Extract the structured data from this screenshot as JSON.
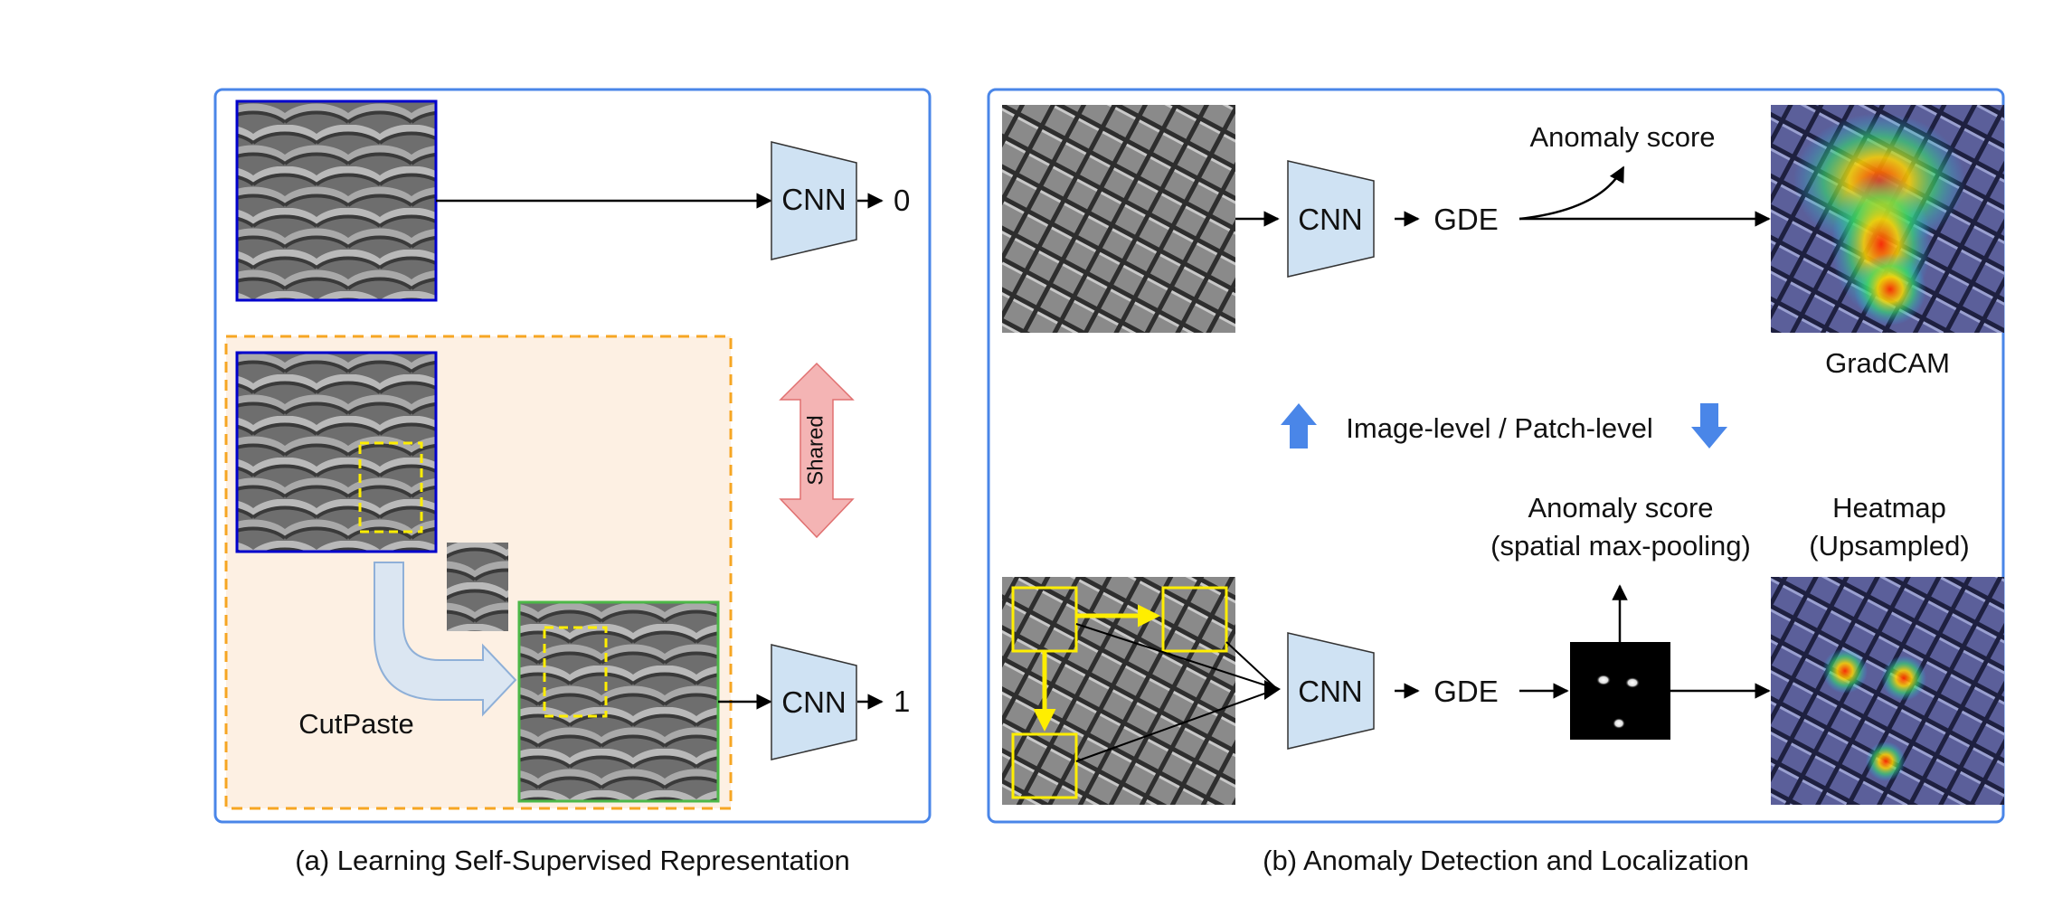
{
  "panel_a": {
    "caption": "(a) Learning Self-Supervised Representation",
    "cnn_top_label": "CNN",
    "cnn_top_output": "0",
    "cnn_bottom_label": "CNN",
    "cnn_bottom_output": "1",
    "shared_label": "Shared",
    "cutpaste_label": "CutPaste"
  },
  "panel_b": {
    "caption": "(b) Anomaly Detection and Localization",
    "cnn_top_label": "CNN",
    "gde_top_label": "GDE",
    "anomaly_score_top": "Anomaly score",
    "gradcam_label": "GradCAM",
    "level_label": "Image-level / Patch-level",
    "cnn_bottom_label": "CNN",
    "gde_bottom_label": "GDE",
    "anomaly_score_bottom_line1": "Anomaly score",
    "anomaly_score_bottom_line2": "(spatial max-pooling)",
    "heatmap_line1": "Heatmap",
    "heatmap_line2": "(Upsampled)"
  },
  "colors": {
    "panel_border": "#4a86e8",
    "cnn_fill": "#cfe2f3",
    "orange_dash": "#f6a623",
    "orange_fill": "#fdf0e3",
    "yellow": "#ffee00",
    "blue_arrow": "#4a86e8",
    "shared_arrow": "#f4b4b4"
  }
}
